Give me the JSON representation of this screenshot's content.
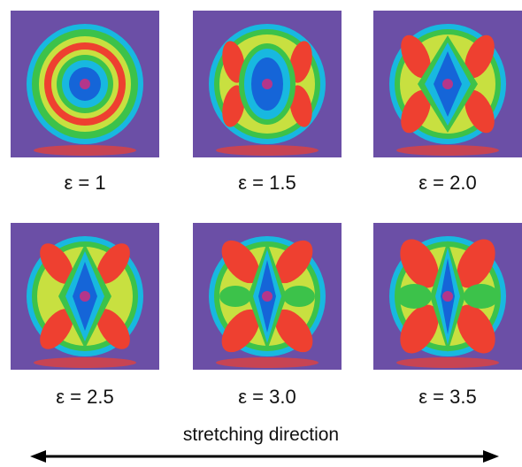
{
  "colors": {
    "background": "#6b4fa6",
    "blue": "#1565d8",
    "cyan": "#18b8e0",
    "green": "#3cc24a",
    "yellow": "#c8e040",
    "red": "#ee4030",
    "magenta": "#b4368a"
  },
  "panels": [
    {
      "label": "ε = 1"
    },
    {
      "label": "ε = 1.5"
    },
    {
      "label": "ε = 2.0"
    },
    {
      "label": "ε = 2.5"
    },
    {
      "label": "ε = 3.0"
    },
    {
      "label": "ε = 3.5"
    }
  ],
  "caption": "stretching direction"
}
